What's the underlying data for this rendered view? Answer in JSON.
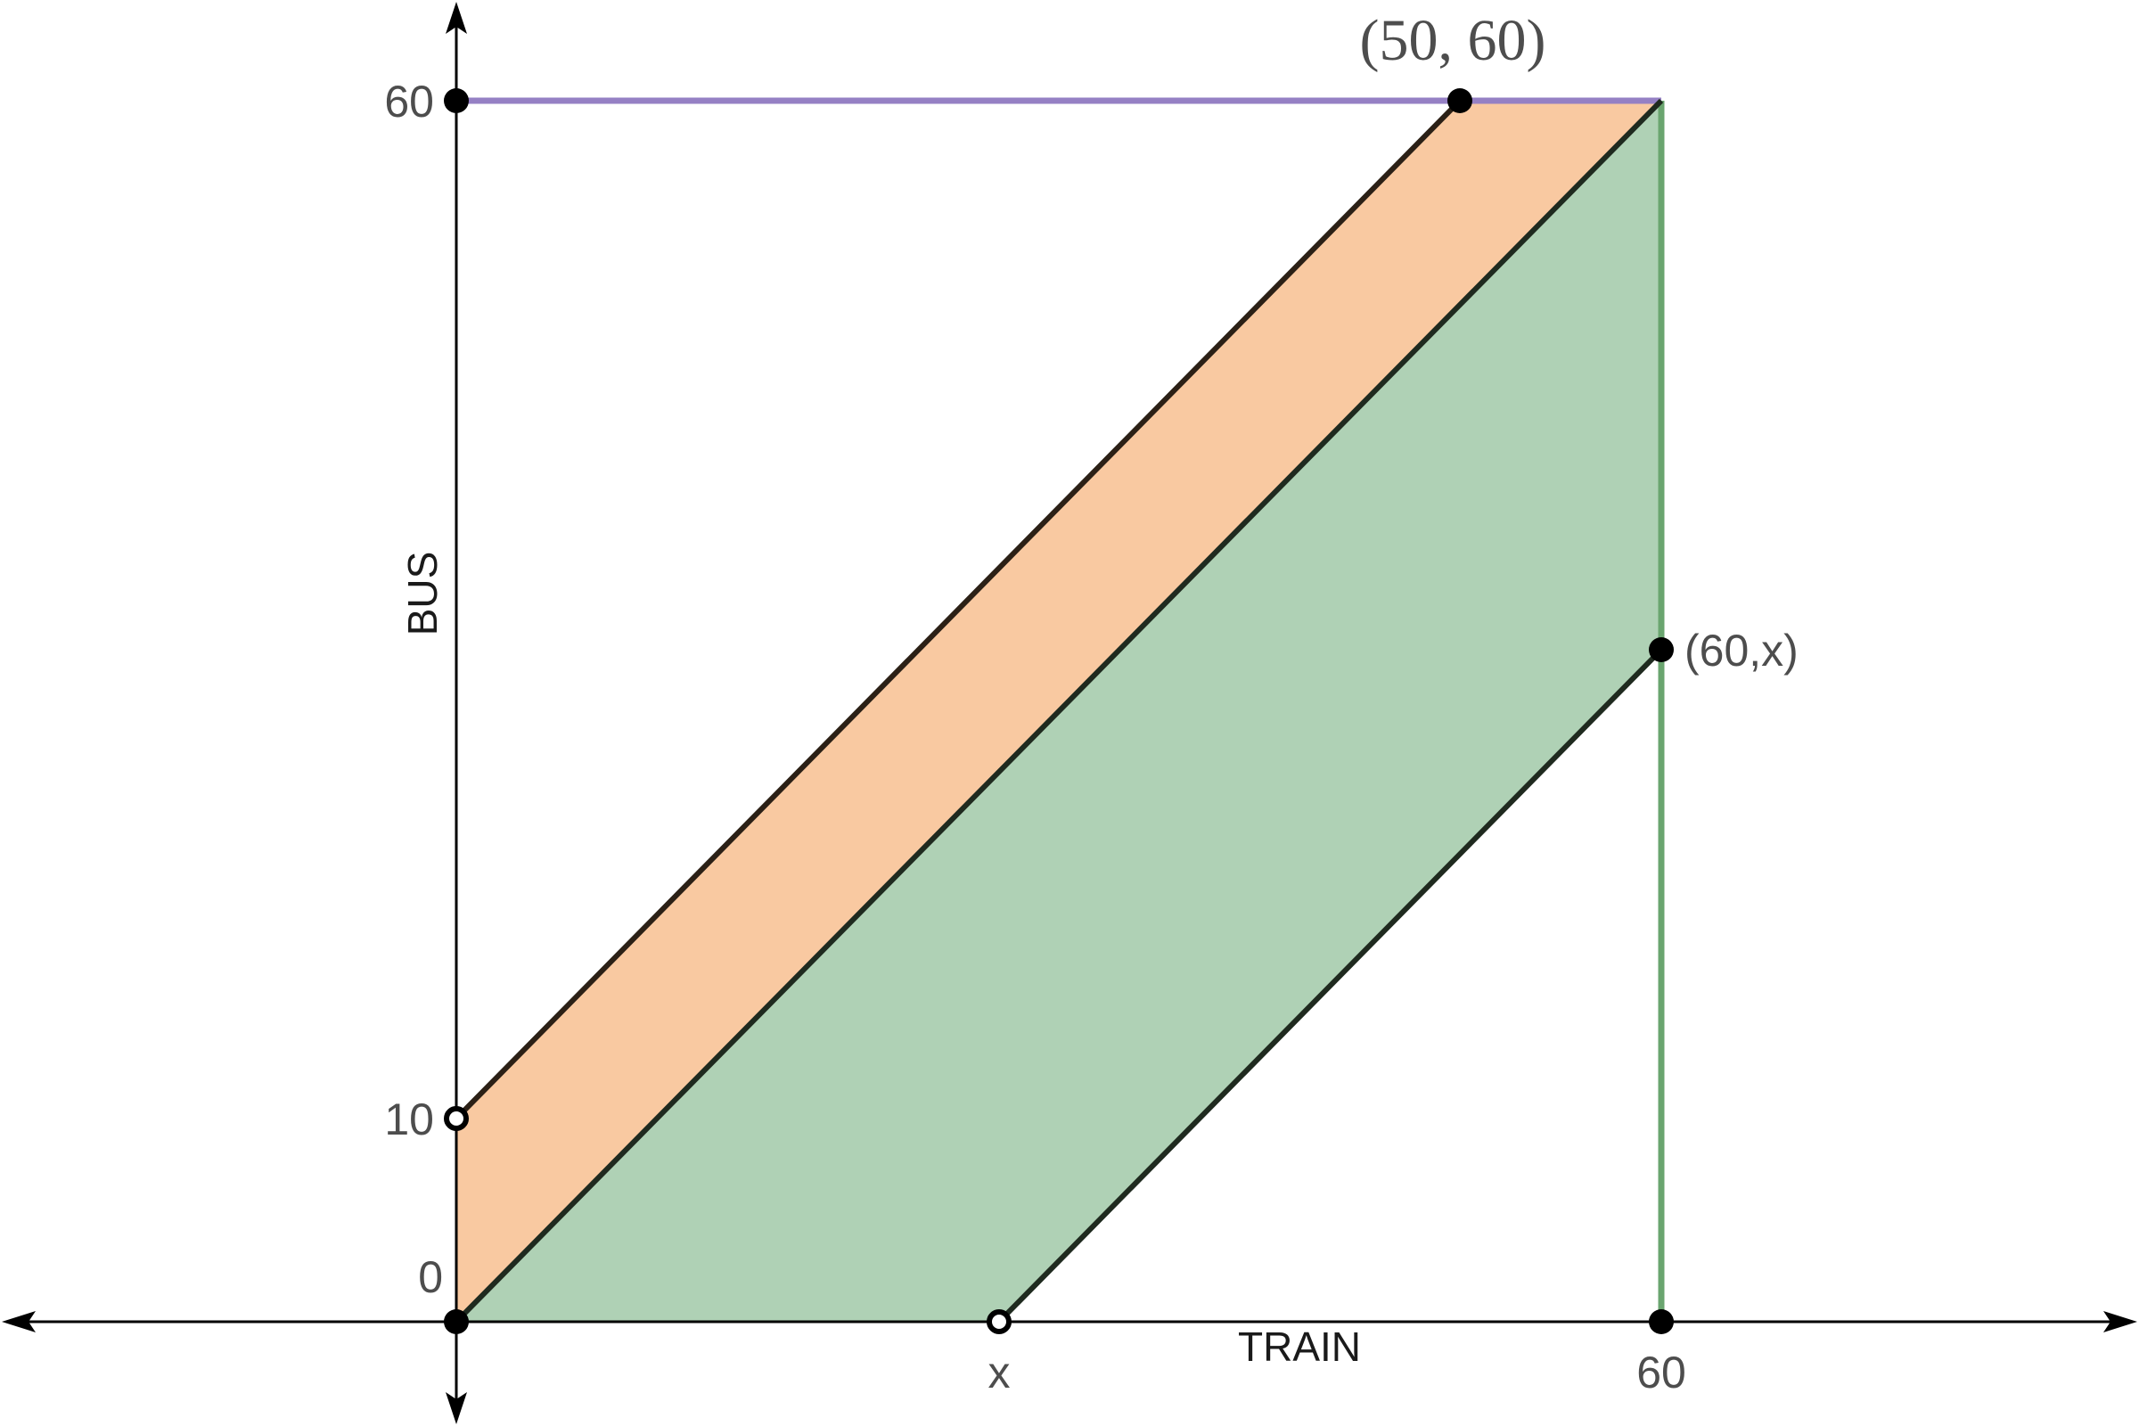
{
  "axes": {
    "x_title": "TRAIN",
    "y_title": "BUS"
  },
  "ticks": {
    "y_60": "60",
    "y_10": "10",
    "y_0": "0",
    "x_x": "x",
    "x_60": "60"
  },
  "points": {
    "top_left_upper": "(50, 60)",
    "right_middle": "(60,x)"
  },
  "colors": {
    "orange_region": "#f9c9a1",
    "green_region": "#afd1b5",
    "purple_line": "#9580c4",
    "green_line": "#6aa56f",
    "dark_line": "#262626",
    "axis": "#000000"
  }
}
